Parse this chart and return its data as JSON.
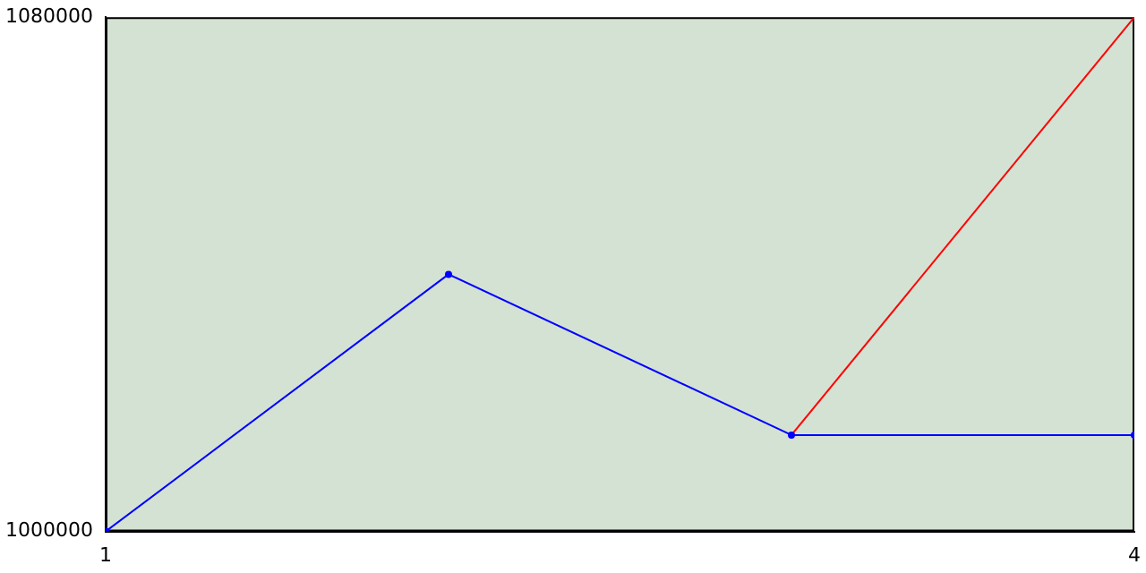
{
  "chart_data": {
    "type": "line",
    "x": [
      1,
      2,
      3,
      4
    ],
    "series": [
      {
        "color": "#0000ff",
        "values": [
          1000000,
          1040000,
          1015000,
          1015000
        ],
        "marker": "circle"
      },
      {
        "color": "#ff0000",
        "x": [
          3,
          4
        ],
        "values": [
          1015000,
          1080000
        ],
        "marker": "none"
      }
    ],
    "xlim": [
      1,
      4
    ],
    "xticks": [
      1,
      4
    ],
    "ylim": [
      1000000,
      1080000
    ],
    "yticks": [
      1000000,
      1080000
    ],
    "grid": false,
    "legend": false
  }
}
